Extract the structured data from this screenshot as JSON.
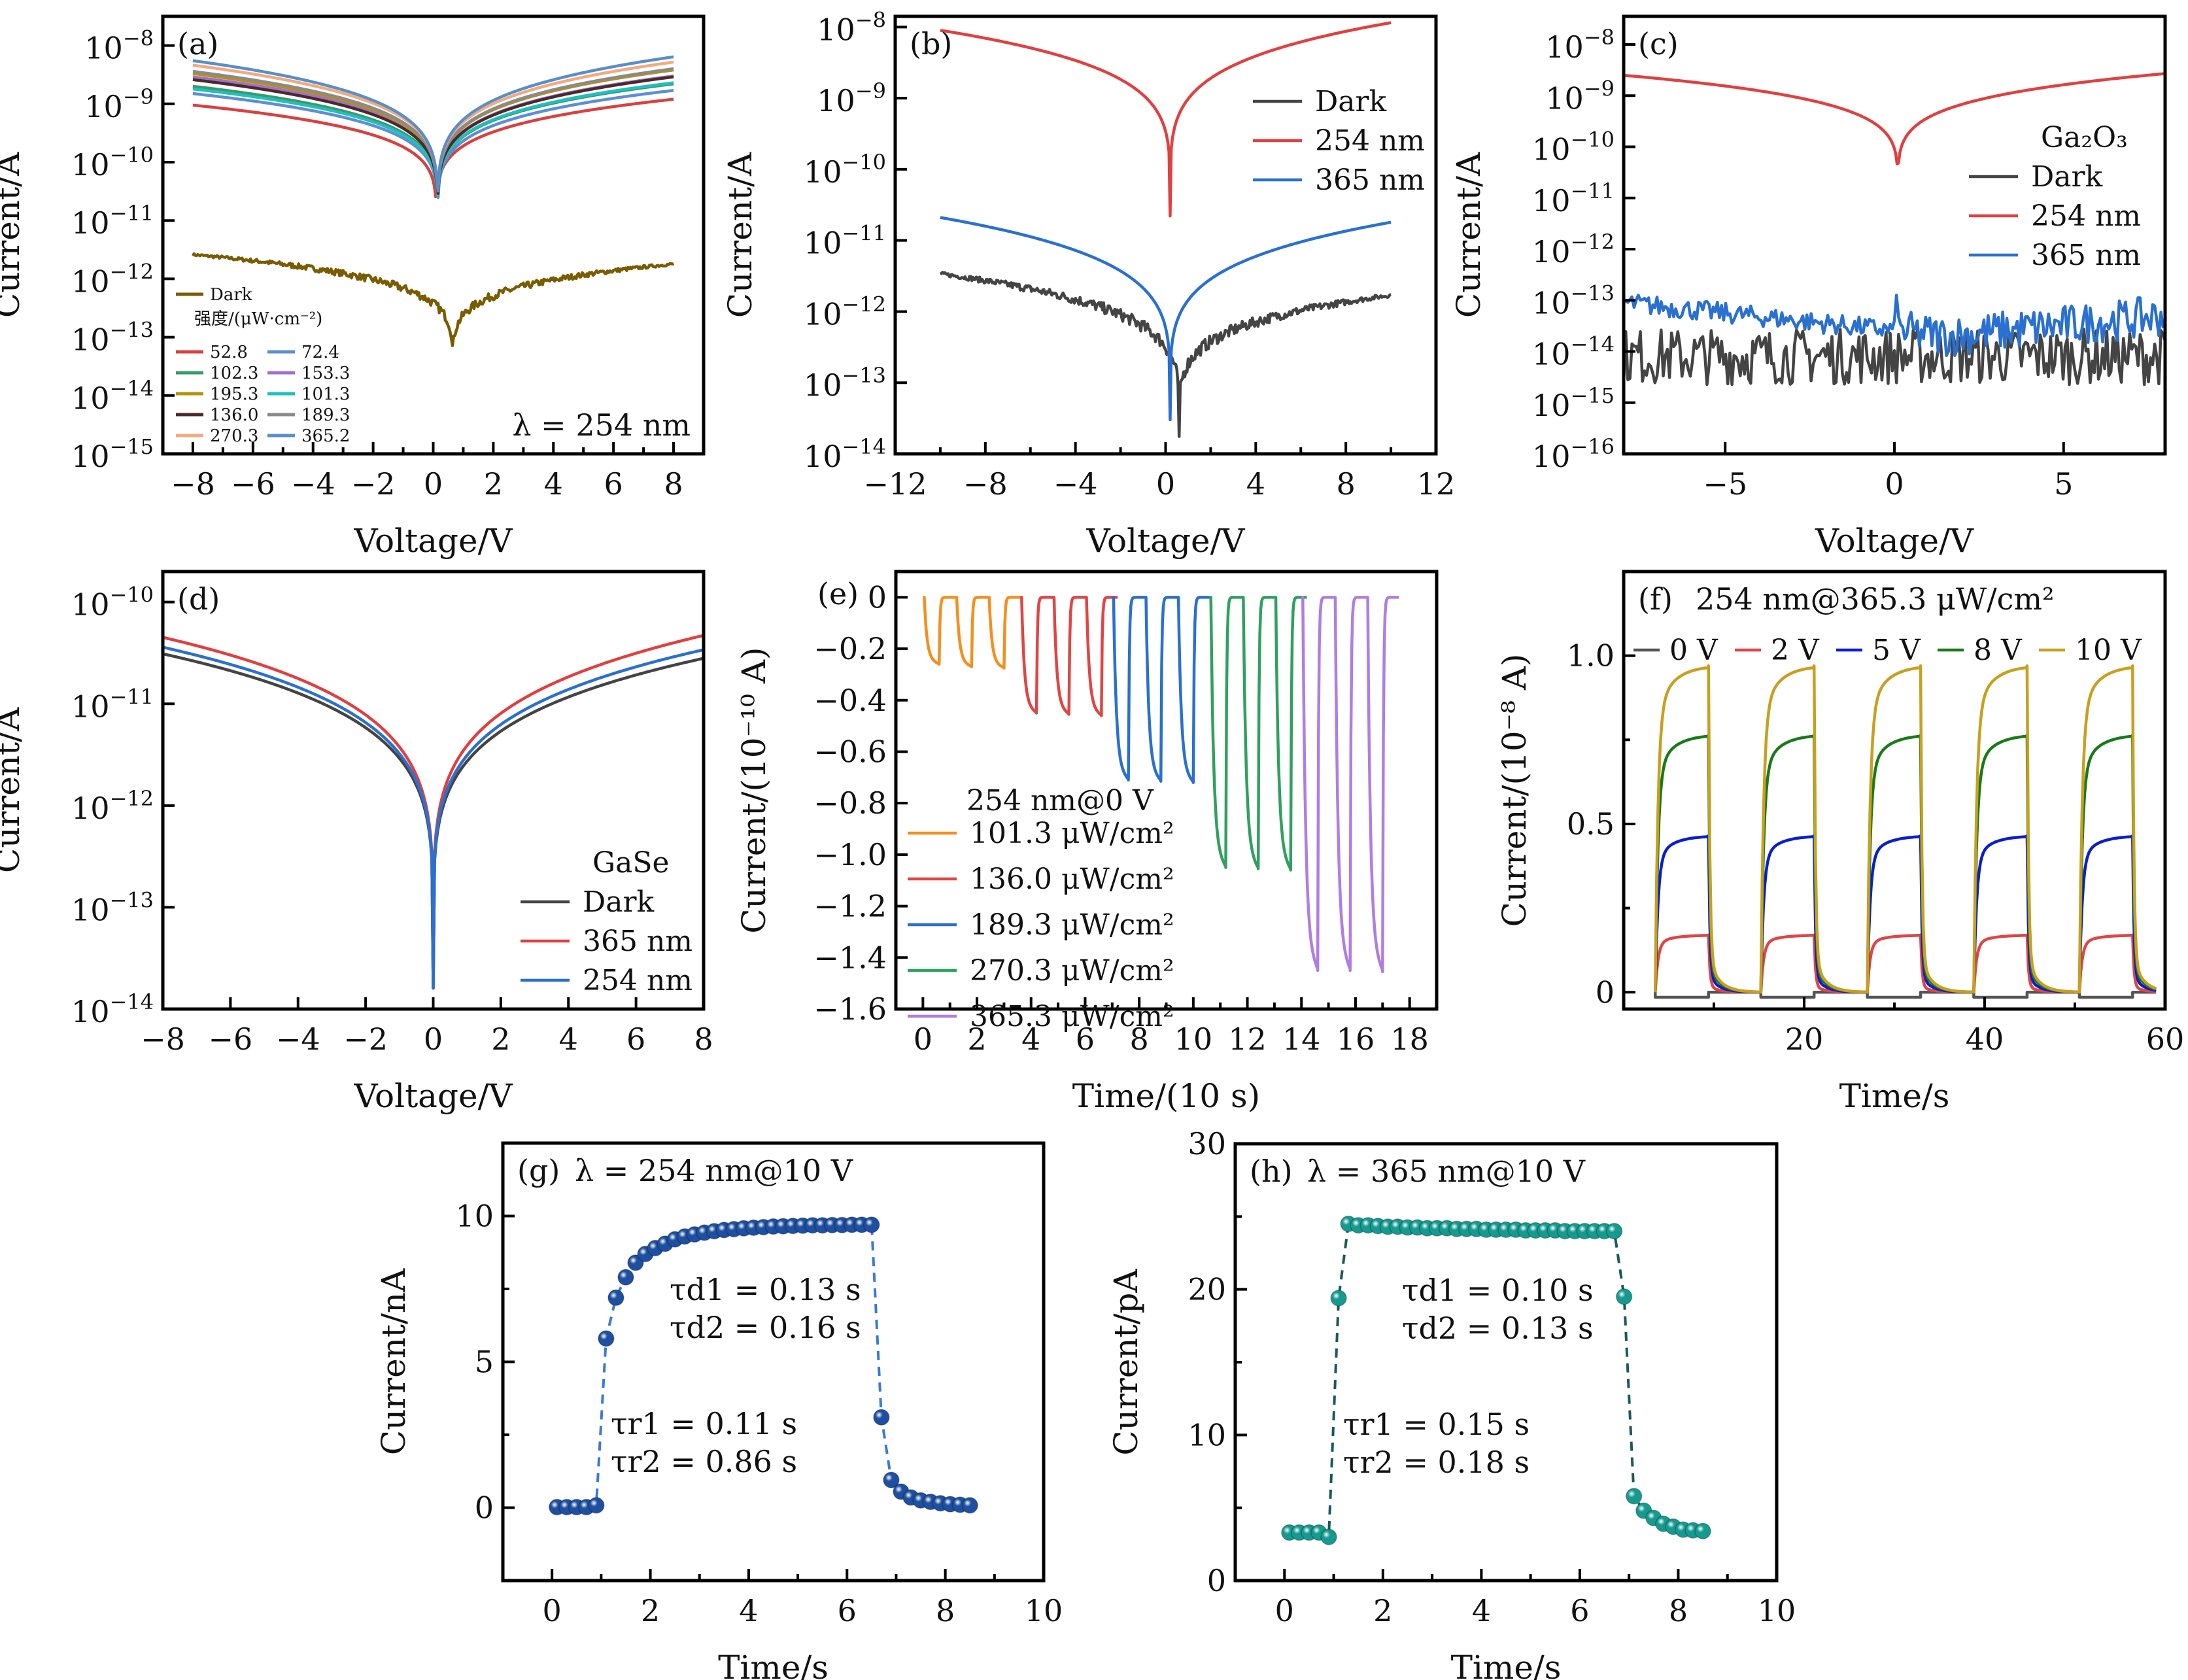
{
  "chart_data": [
    {
      "id": "a",
      "type": "line",
      "panel_label": "(a)",
      "xlabel": "Voltage/V",
      "ylabel": "Current/A",
      "yscale": "log",
      "xlim": [
        -9,
        9
      ],
      "ylim_exp": [
        -15,
        -7.5
      ],
      "xticks": [
        -8,
        -6,
        -4,
        -2,
        0,
        2,
        4,
        6,
        8
      ],
      "xtick_labels": [
        "−8",
        "−6",
        "−4",
        "−2",
        "0",
        "2",
        "4",
        "6",
        "8"
      ],
      "yticks_exp": [
        -8,
        -9,
        -10,
        -11,
        -12,
        -13,
        -14,
        -15
      ],
      "annotation": "λ = 254 nm",
      "legend_title": "强度/(μW·cm⁻²)",
      "legend_position": "bottom-left",
      "series": [
        {
          "name": "Dark",
          "color": "#7a5c00",
          "left": 2.6e-12,
          "right": 1.8e-12,
          "vmin": 0.65,
          "imin": 1.5e-14,
          "noise": 0.04
        },
        {
          "name": "52.8",
          "color": "#d94040",
          "left": 9.5e-10,
          "right": 1.2e-09,
          "vmin": 0.1,
          "imin": 4e-12
        },
        {
          "name": "72.4",
          "color": "#5b8fd6",
          "left": 1.5e-09,
          "right": 1.7e-09,
          "vmin": 0.15,
          "imin": 4e-12
        },
        {
          "name": "102.3",
          "color": "#3a9a6a",
          "left": 2e-09,
          "right": 2.2e-09,
          "vmin": 0.15,
          "imin": 4e-12
        },
        {
          "name": "153.3",
          "color": "#a070d0",
          "left": 2.9e-09,
          "right": 3e-09,
          "vmin": 0.15,
          "imin": 4e-12
        },
        {
          "name": "195.3",
          "color": "#b8920a",
          "left": 3.3e-09,
          "right": 3.8e-09,
          "vmin": 0.15,
          "imin": 4e-12
        },
        {
          "name": "101.3",
          "color": "#20c0c0",
          "left": 1.8e-09,
          "right": 2.3e-09,
          "vmin": 0.15,
          "imin": 4e-12
        },
        {
          "name": "136.0",
          "color": "#4a2a2a",
          "left": 2.6e-09,
          "right": 2.9e-09,
          "vmin": 0.15,
          "imin": 4e-12
        },
        {
          "name": "189.3",
          "color": "#8a8a8a",
          "left": 3.6e-09,
          "right": 4e-09,
          "vmin": 0.15,
          "imin": 4e-12
        },
        {
          "name": "270.3",
          "color": "#f2aa80",
          "left": 4.6e-09,
          "right": 5.2e-09,
          "vmin": 0.15,
          "imin": 4e-12
        },
        {
          "name": "365.2",
          "color": "#5a8ec8",
          "left": 5.5e-09,
          "right": 6.4e-09,
          "vmin": 0.15,
          "imin": 3.5e-12
        }
      ]
    },
    {
      "id": "b",
      "type": "line",
      "panel_label": "(b)",
      "xlabel": "Voltage/V",
      "ylabel": "Current/A",
      "yscale": "log",
      "xlim": [
        -12,
        12
      ],
      "ylim_exp": [
        -14,
        -7.85
      ],
      "xticks": [
        -12,
        -8,
        -4,
        0,
        4,
        8,
        12
      ],
      "xtick_labels": [
        "−12",
        "−8",
        "−4",
        "0",
        "4",
        "8",
        "12"
      ],
      "minor_xticks": [
        -10,
        -6,
        -2,
        2,
        6,
        10
      ],
      "yticks_exp": [
        -8,
        -9,
        -10,
        -11,
        -12,
        -13,
        -14
      ],
      "legend_position": "top-right",
      "series": [
        {
          "name": "Dark",
          "color": "#444444",
          "left": 3.4e-12,
          "right": 1.7e-12,
          "vmin": 0.6,
          "imin": 1.5e-14,
          "noise": 0.05
        },
        {
          "name": "254 nm",
          "color": "#e04040",
          "left": 9e-09,
          "right": 1.15e-08,
          "vmin": 0.2,
          "imin": 2.2e-11
        },
        {
          "name": "365 nm",
          "color": "#2a70d0",
          "left": 2.1e-11,
          "right": 1.8e-11,
          "vmin": 0.2,
          "imin": 3e-14
        }
      ]
    },
    {
      "id": "c",
      "type": "line",
      "panel_label": "(c)",
      "xlabel": "Voltage/V",
      "ylabel": "Current/A",
      "yscale": "log",
      "xlim": [
        -8,
        8
      ],
      "ylim_exp": [
        -16,
        -7.45
      ],
      "xticks": [
        -5,
        0,
        5
      ],
      "xtick_labels": [
        "−5",
        "0",
        "5"
      ],
      "yticks_exp": [
        -8,
        -9,
        -10,
        -11,
        -12,
        -13,
        -14,
        -15,
        -16
      ],
      "legend_title": "Ga₂O₃",
      "legend_position": "right",
      "series": [
        {
          "name": "Dark",
          "color": "#444444",
          "noisy_level": 8e-15,
          "noisy_spread": 0.55
        },
        {
          "name": "254 nm",
          "color": "#e04040",
          "left": 2.5e-09,
          "right": 2.7e-09,
          "vmin": 0.1,
          "imin": 6e-12
        },
        {
          "name": "365 nm",
          "color": "#2a70d0",
          "noisy_start": 9e-14,
          "noisy_mid": 2e-14,
          "noisy_end": 5e-14,
          "noisy_spread": 0.2
        }
      ]
    },
    {
      "id": "d",
      "type": "line",
      "panel_label": "(d)",
      "xlabel": "Voltage/V",
      "ylabel": "Current/A",
      "yscale": "log",
      "xlim": [
        -8,
        8
      ],
      "ylim_exp": [
        -14,
        -9.7
      ],
      "xticks": [
        -8,
        -6,
        -4,
        -2,
        0,
        2,
        4,
        6,
        8
      ],
      "xtick_labels": [
        "−8",
        "−6",
        "−4",
        "−2",
        "0",
        "2",
        "4",
        "6",
        "8"
      ],
      "yticks_exp": [
        -10,
        -11,
        -12,
        -13,
        -14
      ],
      "legend_title": "GaSe",
      "legend_position": "bottom-right",
      "series": [
        {
          "name": "Dark",
          "color": "#444444",
          "left": 3.1e-11,
          "right": 2.8e-11,
          "vmin": 0.0,
          "imin": 1.6e-14
        },
        {
          "name": "365 nm",
          "color": "#e04040",
          "left": 4.5e-11,
          "right": 4.7e-11,
          "vmin": 0.0,
          "imin": 1.6e-14
        },
        {
          "name": "254 nm",
          "color": "#2a70d0",
          "left": 3.6e-11,
          "right": 3.4e-11,
          "vmin": 0.0,
          "imin": 1.6e-14
        }
      ]
    },
    {
      "id": "e",
      "type": "line",
      "panel_label": "(e)",
      "xlabel": "Time/(10 s)",
      "ylabel": "Current/(10⁻¹⁰ A)",
      "xlim": [
        -1,
        19
      ],
      "ylim": [
        -1.6,
        0.1
      ],
      "xticks": [
        0,
        2,
        4,
        6,
        8,
        10,
        12,
        14,
        16,
        18
      ],
      "yticks": [
        0,
        -0.2,
        -0.4,
        -0.6,
        -0.8,
        -1.0,
        -1.2,
        -1.4,
        -1.6
      ],
      "ytick_labels": [
        "0",
        "−0.2",
        "−0.4",
        "−0.6",
        "−0.8",
        "−1.0",
        "−1.2",
        "−1.4",
        "−1.6"
      ],
      "legend_title": "254 nm@0 V",
      "legend_position": "bottom-left",
      "period": 1.2,
      "series": [
        {
          "name": "101.3 μW/cm²",
          "color": "#f39020",
          "start": 0,
          "pulses": 3,
          "amplitudes": [
            -0.26,
            -0.27,
            -0.275
          ]
        },
        {
          "name": "136.0 μW/cm²",
          "color": "#e04545",
          "start": 3.6,
          "pulses": 3,
          "amplitudes": [
            -0.45,
            -0.455,
            -0.46
          ]
        },
        {
          "name": "189.3 μW/cm²",
          "color": "#2a70d0",
          "start": 7.0,
          "pulses": 3,
          "amplitudes": [
            -0.71,
            -0.715,
            -0.72
          ]
        },
        {
          "name": "270.3 μW/cm²",
          "color": "#30a060",
          "start": 10.6,
          "pulses": 3,
          "amplitudes": [
            -1.05,
            -1.055,
            -1.06
          ]
        },
        {
          "name": "365.3 μW/cm²",
          "color": "#b07ee0",
          "start": 14.0,
          "pulses": 3,
          "amplitudes": [
            -1.45,
            -1.45,
            -1.455
          ]
        }
      ]
    },
    {
      "id": "f",
      "type": "line",
      "panel_label": "(f)",
      "title": "254 nm@365.3 μW/cm²",
      "xlabel": "Time/s",
      "ylabel": "Current/(10⁻⁸ A)",
      "xlim": [
        0,
        60
      ],
      "ylim": [
        -0.05,
        1.25
      ],
      "xticks": [
        20,
        40,
        60
      ],
      "minor_xticks": [
        10,
        30,
        50
      ],
      "yticks": [
        0,
        0.5,
        1.0
      ],
      "ytick_labels": [
        "0",
        "0.5",
        "1.0"
      ],
      "minor_yticks": [
        0.25,
        0.75
      ],
      "legend_position": "top",
      "pulse_on": [
        3.5,
        15.2,
        27.0,
        38.8,
        50.5
      ],
      "pulse_width": 5.9,
      "series": [
        {
          "name": "0 V",
          "color": "#555555",
          "amplitude": -0.015
        },
        {
          "name": "2 V",
          "color": "#e04545",
          "amplitude": 0.17
        },
        {
          "name": "5 V",
          "color": "#0a1ed0",
          "amplitude": 0.465
        },
        {
          "name": "8 V",
          "color": "#1a7a1a",
          "amplitude": 0.765
        },
        {
          "name": "10 V",
          "color": "#c8a020",
          "amplitude": 0.97
        }
      ]
    },
    {
      "id": "g",
      "type": "scatter",
      "panel_label": "(g)",
      "title": "λ = 254 nm@10 V",
      "xlabel": "Time/s",
      "ylabel": "Current/nA",
      "xlim": [
        -1,
        10
      ],
      "ylim": [
        -2.5,
        12.5
      ],
      "xticks": [
        0,
        2,
        4,
        6,
        8,
        10
      ],
      "minor_xticks": [
        1,
        3,
        5,
        7,
        9
      ],
      "yticks": [
        0,
        5,
        10
      ],
      "minor_yticks": [
        2.5,
        7.5
      ],
      "color": "#1e4fa0",
      "fit_color": "#3a7ad8",
      "annotations": [
        "τd1 = 0.13 s",
        "τd2 = 0.16 s",
        "τr1 = 0.11 s",
        "τr2 = 0.86 s"
      ],
      "points": [
        [
          0.1,
          0.02
        ],
        [
          0.3,
          0.02
        ],
        [
          0.5,
          0.02
        ],
        [
          0.7,
          0.02
        ],
        [
          0.9,
          0.08
        ],
        [
          1.1,
          5.8
        ],
        [
          1.3,
          7.2
        ],
        [
          1.5,
          7.9
        ],
        [
          1.7,
          8.4
        ],
        [
          1.9,
          8.7
        ],
        [
          2.1,
          8.9
        ],
        [
          2.3,
          9.05
        ],
        [
          2.5,
          9.2
        ],
        [
          2.7,
          9.3
        ],
        [
          2.9,
          9.37
        ],
        [
          3.1,
          9.43
        ],
        [
          3.3,
          9.48
        ],
        [
          3.5,
          9.52
        ],
        [
          3.7,
          9.55
        ],
        [
          3.9,
          9.58
        ],
        [
          4.1,
          9.6
        ],
        [
          4.3,
          9.62
        ],
        [
          4.5,
          9.64
        ],
        [
          4.7,
          9.65
        ],
        [
          4.9,
          9.66
        ],
        [
          5.1,
          9.67
        ],
        [
          5.3,
          9.68
        ],
        [
          5.5,
          9.68
        ],
        [
          5.7,
          9.69
        ],
        [
          5.9,
          9.69
        ],
        [
          6.1,
          9.7
        ],
        [
          6.3,
          9.7
        ],
        [
          6.5,
          9.7
        ],
        [
          6.7,
          3.1
        ],
        [
          6.9,
          0.95
        ],
        [
          7.1,
          0.55
        ],
        [
          7.3,
          0.35
        ],
        [
          7.5,
          0.25
        ],
        [
          7.7,
          0.2
        ],
        [
          7.9,
          0.15
        ],
        [
          8.1,
          0.12
        ],
        [
          8.3,
          0.1
        ],
        [
          8.5,
          0.08
        ]
      ]
    },
    {
      "id": "h",
      "type": "scatter",
      "panel_label": "(h)",
      "title": "λ = 365 nm@10 V",
      "xlabel": "Time/s",
      "ylabel": "Current/pA",
      "xlim": [
        -1,
        10
      ],
      "ylim": [
        0,
        30
      ],
      "xticks": [
        0,
        2,
        4,
        6,
        8,
        10
      ],
      "minor_xticks": [
        1,
        3,
        5,
        7,
        9
      ],
      "yticks": [
        0,
        10,
        20,
        30
      ],
      "minor_yticks": [
        5,
        15,
        25
      ],
      "color": "#159a90",
      "fit_color": "#1a5a58",
      "annotations": [
        "τd1 = 0.10 s",
        "τd2 = 0.13 s",
        "τr1 = 0.15 s",
        "τr2 = 0.18 s"
      ],
      "points": [
        [
          0.1,
          3.3
        ],
        [
          0.3,
          3.3
        ],
        [
          0.5,
          3.3
        ],
        [
          0.7,
          3.3
        ],
        [
          0.9,
          3.0
        ],
        [
          1.1,
          19.4
        ],
        [
          1.3,
          24.5
        ],
        [
          1.5,
          24.4
        ],
        [
          1.7,
          24.4
        ],
        [
          1.9,
          24.35
        ],
        [
          2.1,
          24.3
        ],
        [
          2.3,
          24.3
        ],
        [
          2.5,
          24.25
        ],
        [
          2.7,
          24.25
        ],
        [
          2.9,
          24.2
        ],
        [
          3.1,
          24.2
        ],
        [
          3.3,
          24.2
        ],
        [
          3.5,
          24.15
        ],
        [
          3.7,
          24.15
        ],
        [
          3.9,
          24.15
        ],
        [
          4.1,
          24.1
        ],
        [
          4.3,
          24.1
        ],
        [
          4.5,
          24.1
        ],
        [
          4.7,
          24.1
        ],
        [
          4.9,
          24.05
        ],
        [
          5.1,
          24.05
        ],
        [
          5.3,
          24.05
        ],
        [
          5.5,
          24.05
        ],
        [
          5.7,
          24.0
        ],
        [
          5.9,
          24.0
        ],
        [
          6.1,
          24.0
        ],
        [
          6.3,
          24.0
        ],
        [
          6.5,
          24.0
        ],
        [
          6.7,
          24.0
        ],
        [
          6.9,
          19.5
        ],
        [
          7.1,
          5.8
        ],
        [
          7.3,
          4.8
        ],
        [
          7.5,
          4.3
        ],
        [
          7.7,
          3.9
        ],
        [
          7.9,
          3.7
        ],
        [
          8.1,
          3.5
        ],
        [
          8.3,
          3.45
        ],
        [
          8.5,
          3.4
        ]
      ]
    }
  ]
}
